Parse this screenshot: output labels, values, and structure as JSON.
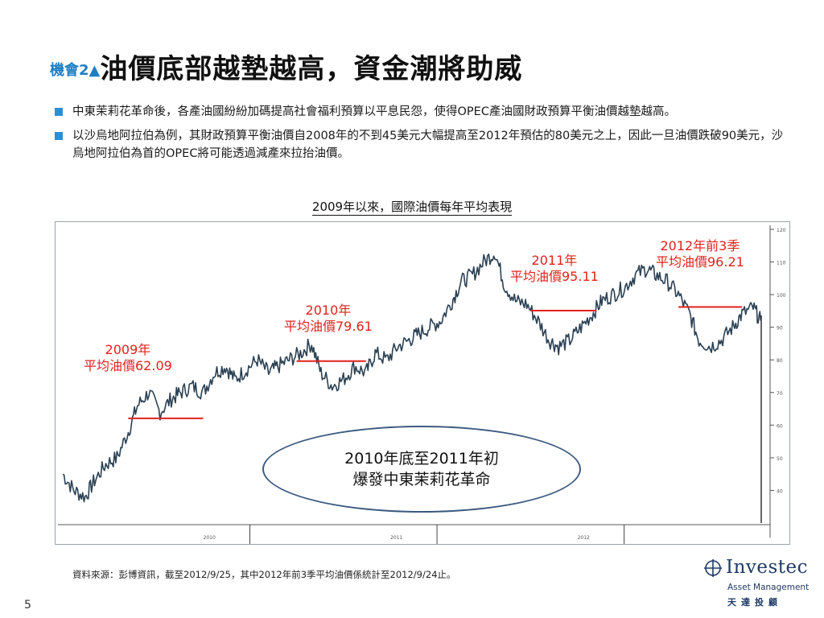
{
  "title": {
    "prefix": "機會2▲",
    "main": "油價底部越墊越高，資金潮將助威"
  },
  "bullets": [
    "中東茉莉花革命後，各產油國紛紛加碼提高社會福利預算以平息民怨，使得OPEC產油國財政預算平衡油價越墊越高。",
    "以沙烏地阿拉伯為例，其財政預算平衡油價自2008年的不到45美元大幅提高至2012年預估的80美元之上，因此一旦油價跌破90美元，沙烏地阿拉伯為首的OPEC將可能透過減產來拉抬油價。"
  ],
  "colors": {
    "accent": "#1f7fc4",
    "annotation": "#e3211c",
    "price_line": "#2b4154",
    "ellipse": "#3c5a80",
    "logo": "#1e3a66"
  },
  "chart_data": {
    "type": "line",
    "title": "2009年以來，國際油價每年平均表現",
    "xlabel": "",
    "ylabel": "",
    "ylim": [
      30,
      120
    ],
    "x_range": [
      2009.0,
      2012.75
    ],
    "series": [
      {
        "x": [
          2009.0,
          2009.06,
          2009.12,
          2009.17,
          2009.23,
          2009.29,
          2009.35,
          2009.4,
          2009.46,
          2009.52,
          2009.58,
          2009.63,
          2009.69,
          2009.75,
          2009.81,
          2009.87,
          2009.92,
          2009.98,
          2010.04,
          2010.1,
          2010.15,
          2010.21,
          2010.27,
          2010.33,
          2010.38,
          2010.44,
          2010.5,
          2010.56,
          2010.62,
          2010.67,
          2010.73,
          2010.79,
          2010.85,
          2010.9,
          2010.96,
          2011.02,
          2011.08,
          2011.13,
          2011.19,
          2011.25,
          2011.31,
          2011.36,
          2011.42,
          2011.48,
          2011.54,
          2011.6,
          2011.65,
          2011.71,
          2011.77,
          2011.83,
          2011.88,
          2011.94,
          2012.0,
          2012.06,
          2012.12,
          2012.17,
          2012.23,
          2012.29,
          2012.35,
          2012.4,
          2012.46,
          2012.52,
          2012.58,
          2012.63,
          2012.69,
          2012.73
        ],
        "values": [
          45,
          40,
          38,
          43,
          48,
          50,
          58,
          66,
          70,
          64,
          68,
          70,
          72,
          70,
          76,
          78,
          74,
          77,
          80,
          76,
          78,
          80,
          82,
          85,
          76,
          72,
          74,
          78,
          76,
          82,
          80,
          84,
          86,
          88,
          90,
          92,
          98,
          104,
          106,
          110,
          113,
          103,
          98,
          97,
          92,
          86,
          84,
          86,
          90,
          94,
          98,
          100,
          102,
          106,
          108,
          106,
          104,
          100,
          94,
          86,
          84,
          86,
          90,
          94,
          96,
          92
        ]
      }
    ],
    "averages": [
      {
        "year": "2009",
        "value": 62.09,
        "label_line1": "2009年",
        "label_line2": "平均油價62.09"
      },
      {
        "year": "2010",
        "value": 79.61,
        "label_line1": "2010年",
        "label_line2": "平均油價79.61"
      },
      {
        "year": "2011",
        "value": 95.11,
        "label_line1": "2011年",
        "label_line2": "平均油價95.11"
      },
      {
        "year": "2012",
        "value": 96.21,
        "label_line1": "2012年前3季",
        "label_line2": "平均油價96.21"
      }
    ],
    "callout": {
      "line1": "2010年底至2011年初",
      "line2": "爆發中東茉莉花革命"
    },
    "y_ticks": [
      40,
      50,
      60,
      70,
      80,
      90,
      100,
      110,
      120
    ],
    "x_tick_labels": [
      "2010",
      "2011",
      "2012"
    ]
  },
  "source": "資料來源：彭博資訊，截至2012/9/25，其中2012年前3季平均油價係統計至2012/9/24止。",
  "page_number": "5",
  "logo": {
    "wordmark": "Investec",
    "sub": "Asset Management",
    "cn": "天達投顧"
  }
}
